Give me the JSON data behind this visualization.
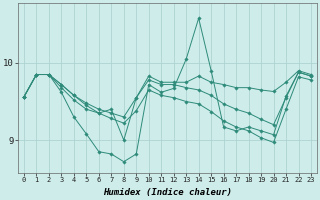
{
  "xlabel": "Humidex (Indice chaleur)",
  "x": [
    0,
    1,
    2,
    3,
    4,
    5,
    6,
    7,
    8,
    9,
    10,
    11,
    12,
    13,
    14,
    15,
    16,
    17,
    18,
    19,
    20,
    21,
    22,
    23
  ],
  "line_volatile": [
    9.56,
    9.85,
    9.85,
    9.62,
    9.3,
    9.08,
    8.85,
    8.82,
    8.72,
    8.82,
    9.72,
    9.62,
    9.67,
    10.05,
    10.58,
    9.9,
    9.17,
    9.12,
    9.17,
    9.12,
    9.07,
    9.57,
    9.88,
    9.83
  ],
  "line_flat1": [
    9.56,
    9.85,
    9.85,
    9.68,
    9.52,
    9.4,
    9.35,
    9.4,
    9.0,
    9.55,
    9.83,
    9.75,
    9.75,
    9.75,
    9.83,
    9.75,
    9.72,
    9.68,
    9.68,
    9.65,
    9.63,
    9.75,
    9.9,
    9.85
  ],
  "line_decline1": [
    9.56,
    9.85,
    9.85,
    9.72,
    9.58,
    9.48,
    9.4,
    9.35,
    9.3,
    9.55,
    9.78,
    9.72,
    9.72,
    9.68,
    9.65,
    9.58,
    9.47,
    9.4,
    9.35,
    9.27,
    9.2,
    9.55,
    9.88,
    9.83
  ],
  "line_decline2": [
    9.56,
    9.85,
    9.85,
    9.72,
    9.58,
    9.45,
    9.35,
    9.28,
    9.22,
    9.38,
    9.65,
    9.58,
    9.55,
    9.5,
    9.47,
    9.37,
    9.25,
    9.17,
    9.12,
    9.03,
    8.97,
    9.4,
    9.82,
    9.78
  ],
  "line_color": "#2e8b7a",
  "bg_color": "#ceecea",
  "grid_color": "#aed4d0",
  "ylim": [
    8.58,
    10.78
  ],
  "yticks": [
    9,
    10
  ],
  "xticks": [
    0,
    1,
    2,
    3,
    4,
    5,
    6,
    7,
    8,
    9,
    10,
    11,
    12,
    13,
    14,
    15,
    16,
    17,
    18,
    19,
    20,
    21,
    22,
    23
  ]
}
